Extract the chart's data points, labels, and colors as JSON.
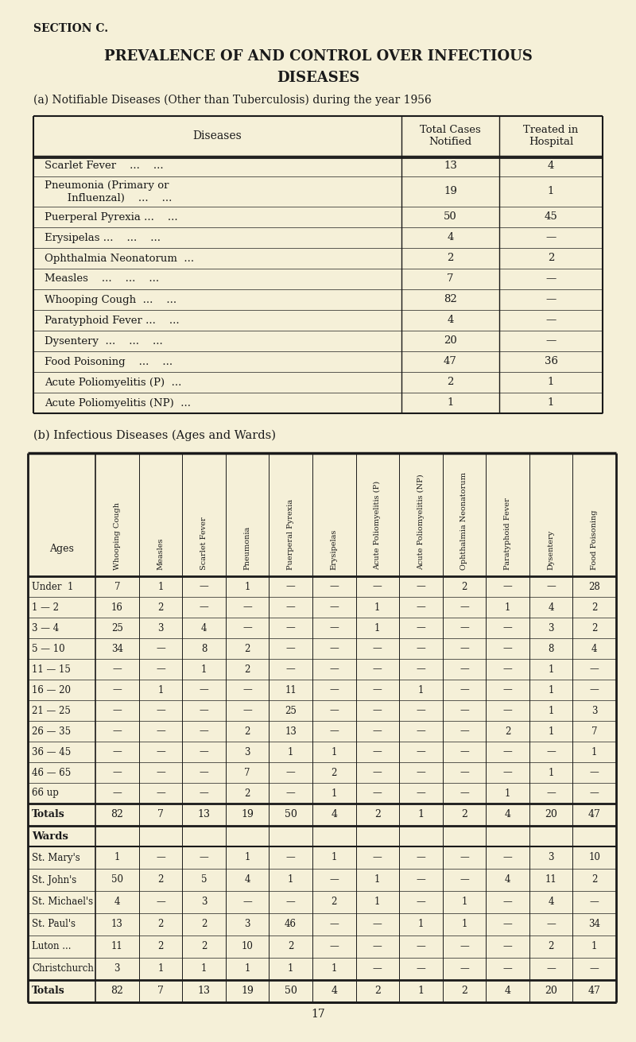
{
  "bg_color": "#f5f0d8",
  "section_title": "SECTION C.",
  "main_title_line1": "PREVALENCE OF AND CONTROL OVER INFECTIOUS",
  "main_title_line2": "DISEASES",
  "subtitle_a": "(a) Notifiable Diseases (Other than Tuberculosis) during the year 1956",
  "subtitle_b": "(b) Infectious Diseases (Ages and Wards)",
  "table_a_rows": [
    [
      "Scarlet Fever    ...    ...",
      "13",
      "4"
    ],
    [
      "Pneumonia (Primary or\n   Influenzal)    ...    ...",
      "19",
      "1"
    ],
    [
      "Puerperal Pyrexia ...    ...",
      "50",
      "45"
    ],
    [
      "Erysipelas ...    ...    ...",
      "4",
      "—"
    ],
    [
      "Ophthalmia Neonatorum  ...",
      "2",
      "2"
    ],
    [
      "Measles    ...    ...    ...",
      "7",
      "—"
    ],
    [
      "Whooping Cough  ...    ...",
      "82",
      "—"
    ],
    [
      "Paratyphoid Fever ...    ...",
      "4",
      "—"
    ],
    [
      "Dysentery  ...    ...    ...",
      "20",
      "—"
    ],
    [
      "Food Poisoning    ...    ...",
      "47",
      "36"
    ],
    [
      "Acute Poliomyelitis (P)  ...",
      "2",
      "1"
    ],
    [
      "Acute Poliomyelitis (NP)  ...",
      "1",
      "1"
    ]
  ],
  "table_b_col_headers": [
    "Whooping Cough",
    "Measles",
    "Scarlet Fever",
    "Pneumonia",
    "Puerperal Pyrexia",
    "Erysipelas",
    "Acute Poliomyelitis (P)",
    "Acute Poliomyelitis (NP)",
    "Ophthalmia Neonatorum",
    "Paratyphoid Fever",
    "Dysentery",
    "Food Poisoning"
  ],
  "table_b_age_rows": [
    [
      "Under  1",
      "7",
      "1",
      "—",
      "1",
      "—",
      "—",
      "—",
      "—",
      "2",
      "—",
      "—",
      "28"
    ],
    [
      "1 — 2",
      "16",
      "2",
      "—",
      "—",
      "—",
      "—",
      "1",
      "—",
      "—",
      "1",
      "4",
      "2"
    ],
    [
      "3 — 4",
      "25",
      "3",
      "4",
      "—",
      "—",
      "—",
      "1",
      "—",
      "—",
      "—",
      "3",
      "2"
    ],
    [
      "5 — 10",
      "34",
      "—",
      "8",
      "2",
      "—",
      "—",
      "—",
      "—",
      "—",
      "—",
      "8",
      "4"
    ],
    [
      "11 — 15",
      "—",
      "—",
      "1",
      "2",
      "—",
      "—",
      "—",
      "—",
      "—",
      "—",
      "1",
      "—"
    ],
    [
      "16 — 20",
      "—",
      "1",
      "—",
      "—",
      "11",
      "—",
      "—",
      "1",
      "—",
      "—",
      "1",
      "—"
    ],
    [
      "21 — 25",
      "—",
      "—",
      "—",
      "—",
      "25",
      "—",
      "—",
      "—",
      "—",
      "—",
      "1",
      "3"
    ],
    [
      "26 — 35",
      "—",
      "—",
      "—",
      "2",
      "13",
      "—",
      "—",
      "—",
      "—",
      "2",
      "1",
      "7"
    ],
    [
      "36 — 45",
      "—",
      "—",
      "—",
      "3",
      "1",
      "1",
      "—",
      "—",
      "—",
      "—",
      "—",
      "1"
    ],
    [
      "46 — 65",
      "—",
      "—",
      "—",
      "7",
      "—",
      "2",
      "—",
      "—",
      "—",
      "—",
      "1",
      "—"
    ],
    [
      "66 up",
      "—",
      "—",
      "—",
      "2",
      "—",
      "1",
      "—",
      "—",
      "—",
      "1",
      "—",
      "—"
    ]
  ],
  "table_b_totals": [
    "Totals",
    "82",
    "7",
    "13",
    "19",
    "50",
    "4",
    "2",
    "1",
    "2",
    "4",
    "20",
    "47"
  ],
  "table_b_ward_rows": [
    [
      "St. Mary's",
      "1",
      "—",
      "—",
      "1",
      "—",
      "1",
      "—",
      "—",
      "—",
      "—",
      "3",
      "10"
    ],
    [
      "St. John's",
      "50",
      "2",
      "5",
      "4",
      "1",
      "—",
      "1",
      "—",
      "—",
      "4",
      "11",
      "2"
    ],
    [
      "St. Michael's",
      "4",
      "—",
      "3",
      "—",
      "—",
      "2",
      "1",
      "—",
      "1",
      "—",
      "4",
      "—"
    ],
    [
      "St. Paul's",
      "13",
      "2",
      "2",
      "3",
      "46",
      "—",
      "—",
      "1",
      "1",
      "—",
      "—",
      "34"
    ],
    [
      "Luton ...",
      "11",
      "2",
      "2",
      "10",
      "2",
      "—",
      "—",
      "—",
      "—",
      "—",
      "2",
      "1"
    ],
    [
      "Christchurch",
      "3",
      "1",
      "1",
      "1",
      "1",
      "1",
      "—",
      "—",
      "—",
      "—",
      "—",
      "—"
    ]
  ],
  "table_b_ward_totals": [
    "Totals",
    "82",
    "7",
    "13",
    "19",
    "50",
    "4",
    "2",
    "1",
    "2",
    "4",
    "20",
    "47"
  ],
  "page_number": "17"
}
